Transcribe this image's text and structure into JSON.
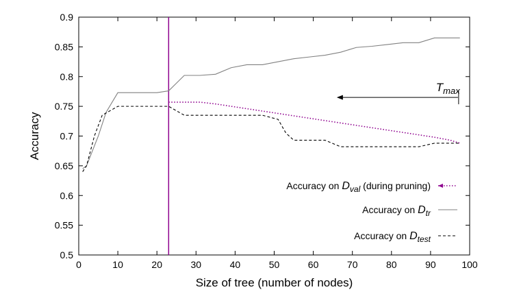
{
  "chart_data": {
    "type": "line",
    "xlabel": "Size of tree (number of nodes)",
    "ylabel": "Accuracy",
    "xlim": [
      0,
      100
    ],
    "ylim": [
      0.5,
      0.9
    ],
    "xticks": [
      0,
      10,
      20,
      30,
      40,
      50,
      60,
      70,
      80,
      90,
      100
    ],
    "yticks": [
      0.5,
      0.55,
      0.6,
      0.65,
      0.7,
      0.75,
      0.8,
      0.85,
      0.9
    ],
    "xtick_labels": [
      "0",
      "10",
      "20",
      "30",
      "40",
      "50",
      "60",
      "70",
      "80",
      "90",
      "100"
    ],
    "ytick_labels": [
      "0.5",
      "0.55",
      "0.6",
      "0.65",
      "0.7",
      "0.75",
      "0.8",
      "0.85",
      "0.9"
    ],
    "grid": false,
    "legend_placement": "bottom-right",
    "vertical_line": {
      "x": 23,
      "color": "#8e008e"
    },
    "annotation": {
      "text_main": "T",
      "text_sub": "max",
      "x": 97.5,
      "y": 0.778,
      "arrow_from_x": 97,
      "arrow_to_x": 66,
      "arrow_y": 0.765
    },
    "series": [
      {
        "name_prefix": "Accuracy on ",
        "name_var": "D",
        "name_sub": "val",
        "name_suffix": "  (during pruning)",
        "color": "#8e008e",
        "style": "dotted",
        "x": [
          23,
          27,
          31,
          35,
          39,
          43,
          47,
          51,
          55,
          59,
          63,
          67,
          71,
          75,
          79,
          83,
          87,
          91,
          95,
          97.5
        ],
        "y": [
          0.757,
          0.757,
          0.757,
          0.754,
          0.75,
          0.746,
          0.742,
          0.738,
          0.734,
          0.73,
          0.726,
          0.722,
          0.718,
          0.714,
          0.71,
          0.706,
          0.702,
          0.698,
          0.693,
          0.688
        ]
      },
      {
        "name_prefix": "Accuracy on ",
        "name_var": "D",
        "name_sub": "tr",
        "name_suffix": "",
        "color": "#808080",
        "style": "solid",
        "x": [
          1,
          2,
          5,
          7,
          10,
          12,
          15,
          20,
          22,
          23,
          27,
          31,
          35,
          39,
          43,
          47,
          51,
          55,
          59,
          63,
          67,
          71,
          75,
          79,
          83,
          87,
          91,
          95,
          97.5
        ],
        "y": [
          0.645,
          0.65,
          0.7,
          0.74,
          0.773,
          0.773,
          0.773,
          0.773,
          0.775,
          0.776,
          0.802,
          0.802,
          0.804,
          0.815,
          0.82,
          0.82,
          0.825,
          0.83,
          0.833,
          0.836,
          0.841,
          0.849,
          0.851,
          0.854,
          0.857,
          0.857,
          0.865,
          0.865,
          0.865
        ]
      },
      {
        "name_prefix": "Accuracy on ",
        "name_var": "D",
        "name_sub": "test",
        "name_suffix": "",
        "color": "#000000",
        "style": "dashed",
        "x": [
          1,
          2,
          4,
          6,
          10,
          13,
          17,
          22,
          23,
          27,
          31,
          35,
          39,
          43,
          47,
          51,
          53,
          55,
          59,
          63,
          67,
          71,
          75,
          79,
          83,
          87,
          91,
          95,
          97.5
        ],
        "y": [
          0.64,
          0.65,
          0.7,
          0.735,
          0.75,
          0.75,
          0.75,
          0.75,
          0.75,
          0.735,
          0.735,
          0.735,
          0.735,
          0.735,
          0.735,
          0.728,
          0.705,
          0.693,
          0.693,
          0.693,
          0.682,
          0.682,
          0.682,
          0.682,
          0.682,
          0.682,
          0.688,
          0.688,
          0.688
        ]
      }
    ]
  }
}
